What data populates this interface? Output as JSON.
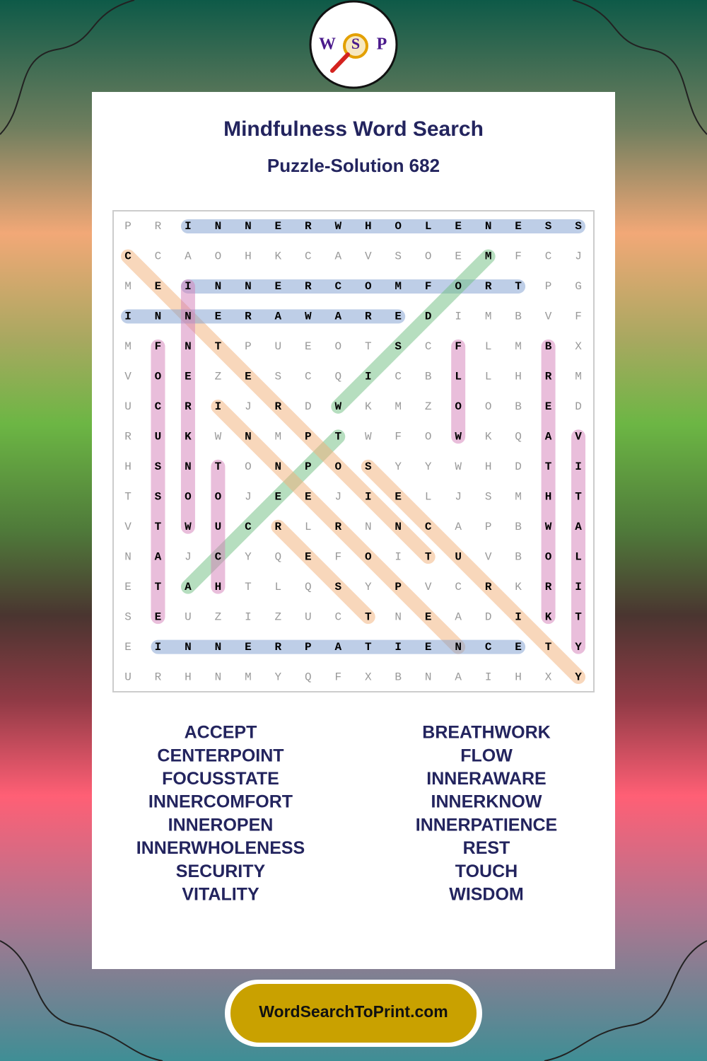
{
  "logo": {
    "letters": [
      "W",
      "S",
      "P"
    ]
  },
  "header": {
    "title": "Mindfulness Word Search",
    "subtitle": "Puzzle-Solution 682"
  },
  "grid": {
    "rows": [
      [
        "P",
        "R",
        "I",
        "N",
        "N",
        "E",
        "R",
        "W",
        "H",
        "O",
        "L",
        "E",
        "N",
        "E",
        "S",
        "S"
      ],
      [
        "C",
        "C",
        "A",
        "O",
        "H",
        "K",
        "C",
        "A",
        "V",
        "S",
        "O",
        "E",
        "M",
        "F",
        "C",
        "J"
      ],
      [
        "M",
        "E",
        "I",
        "N",
        "N",
        "E",
        "R",
        "C",
        "O",
        "M",
        "F",
        "O",
        "R",
        "T",
        "P",
        "G"
      ],
      [
        "I",
        "N",
        "N",
        "E",
        "R",
        "A",
        "W",
        "A",
        "R",
        "E",
        "D",
        "I",
        "M",
        "B",
        "V",
        "F"
      ],
      [
        "M",
        "F",
        "N",
        "T",
        "P",
        "U",
        "E",
        "O",
        "T",
        "S",
        "C",
        "F",
        "L",
        "M",
        "B",
        "X"
      ],
      [
        "V",
        "O",
        "E",
        "Z",
        "E",
        "S",
        "C",
        "Q",
        "I",
        "C",
        "B",
        "L",
        "L",
        "H",
        "R",
        "M"
      ],
      [
        "U",
        "C",
        "R",
        "I",
        "J",
        "R",
        "D",
        "W",
        "K",
        "M",
        "Z",
        "O",
        "O",
        "B",
        "E",
        "D"
      ],
      [
        "R",
        "U",
        "K",
        "W",
        "N",
        "M",
        "P",
        "T",
        "W",
        "F",
        "O",
        "W",
        "K",
        "Q",
        "A",
        "V"
      ],
      [
        "H",
        "S",
        "N",
        "T",
        "O",
        "N",
        "P",
        "O",
        "S",
        "Y",
        "Y",
        "W",
        "H",
        "D",
        "T",
        "I"
      ],
      [
        "T",
        "S",
        "O",
        "O",
        "J",
        "E",
        "E",
        "J",
        "I",
        "E",
        "L",
        "J",
        "S",
        "M",
        "H",
        "T"
      ],
      [
        "V",
        "T",
        "W",
        "U",
        "C",
        "R",
        "L",
        "R",
        "N",
        "N",
        "C",
        "A",
        "P",
        "B",
        "W",
        "A"
      ],
      [
        "N",
        "A",
        "J",
        "C",
        "Y",
        "Q",
        "E",
        "F",
        "O",
        "I",
        "T",
        "U",
        "V",
        "B",
        "O",
        "L"
      ],
      [
        "E",
        "T",
        "A",
        "H",
        "T",
        "L",
        "Q",
        "S",
        "Y",
        "P",
        "V",
        "C",
        "R",
        "K",
        "R",
        "I"
      ],
      [
        "S",
        "E",
        "U",
        "Z",
        "I",
        "Z",
        "U",
        "C",
        "T",
        "N",
        "E",
        "A",
        "D",
        "I",
        "K",
        "T"
      ],
      [
        "E",
        "I",
        "N",
        "N",
        "E",
        "R",
        "P",
        "A",
        "T",
        "I",
        "E",
        "N",
        "C",
        "E",
        "T",
        "Y"
      ],
      [
        "U",
        "R",
        "H",
        "N",
        "M",
        "Y",
        "Q",
        "F",
        "X",
        "B",
        "N",
        "A",
        "I",
        "H",
        "X",
        "Y"
      ]
    ]
  },
  "words": {
    "left": [
      "ACCEPT",
      "CENTERPOINT",
      "FOCUSSTATE",
      "INNERCOMFORT",
      "INNEROPEN",
      "INNERWHOLENESS",
      "SECURITY",
      "VITALITY"
    ],
    "right": [
      "BREATHWORK",
      "FLOW",
      "INNERAWARE",
      "INNERKNOW",
      "INNERPATIENCE",
      "REST",
      "TOUCH",
      "WISDOM"
    ]
  },
  "footer": {
    "link": "WordSearchToPrint.com"
  }
}
